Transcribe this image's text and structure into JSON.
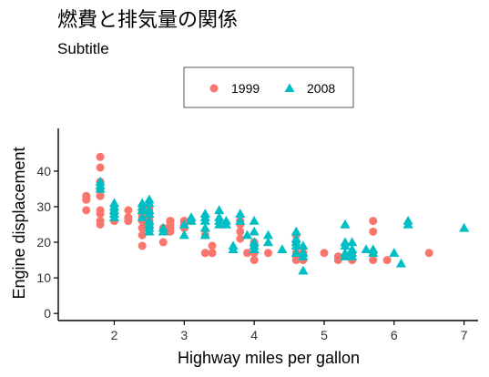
{
  "chart_data": {
    "type": "scatter",
    "title": "燃費と排気量の関係",
    "subtitle": "Subtitle",
    "xlabel": "Highway miles per gallon",
    "ylabel": "Engine displacement",
    "xlim": [
      1.2,
      7.2
    ],
    "ylim": [
      -2,
      52
    ],
    "xticks": [
      2,
      3,
      4,
      5,
      6,
      7
    ],
    "yticks": [
      0,
      10,
      20,
      30,
      40
    ],
    "grid": false,
    "legend": {
      "position": "top-center",
      "entries": [
        "1999",
        "2008"
      ]
    },
    "series": [
      {
        "name": "1999",
        "color": "#F8766D",
        "marker": "circle",
        "points": [
          [
            1.6,
            33
          ],
          [
            1.6,
            32
          ],
          [
            1.6,
            32
          ],
          [
            1.6,
            29
          ],
          [
            1.6,
            32
          ],
          [
            1.8,
            44
          ],
          [
            1.8,
            41
          ],
          [
            1.8,
            29
          ],
          [
            1.8,
            26
          ],
          [
            1.8,
            25
          ],
          [
            1.8,
            33
          ],
          [
            1.8,
            35
          ],
          [
            1.8,
            37
          ],
          [
            1.8,
            35
          ],
          [
            1.8,
            28
          ],
          [
            1.8,
            33
          ],
          [
            2.0,
            26
          ],
          [
            2.0,
            28
          ],
          [
            2.0,
            29
          ],
          [
            2.2,
            26
          ],
          [
            2.2,
            27
          ],
          [
            2.2,
            29
          ],
          [
            2.4,
            24
          ],
          [
            2.4,
            24
          ],
          [
            2.4,
            22
          ],
          [
            2.4,
            19
          ],
          [
            2.4,
            27
          ],
          [
            2.4,
            26
          ],
          [
            2.4,
            28
          ],
          [
            2.4,
            29
          ],
          [
            2.5,
            26
          ],
          [
            2.5,
            25
          ],
          [
            2.5,
            26
          ],
          [
            2.5,
            28
          ],
          [
            2.5,
            27
          ],
          [
            2.5,
            25
          ],
          [
            2.5,
            24
          ],
          [
            2.5,
            29
          ],
          [
            2.5,
            30
          ],
          [
            2.7,
            20
          ],
          [
            2.7,
            24
          ],
          [
            2.8,
            26
          ],
          [
            2.8,
            25
          ],
          [
            2.8,
            23
          ],
          [
            2.8,
            24
          ],
          [
            2.8,
            26
          ],
          [
            3.0,
            26
          ],
          [
            3.0,
            25
          ],
          [
            3.0,
            24
          ],
          [
            3.0,
            26
          ],
          [
            3.1,
            26
          ],
          [
            3.3,
            22
          ],
          [
            3.3,
            17
          ],
          [
            3.3,
            17
          ],
          [
            3.4,
            17
          ],
          [
            3.4,
            19
          ],
          [
            3.4,
            17
          ],
          [
            3.8,
            26
          ],
          [
            3.8,
            25
          ],
          [
            3.8,
            21
          ],
          [
            3.8,
            23
          ],
          [
            3.9,
            17
          ],
          [
            4.0,
            15
          ],
          [
            4.0,
            20
          ],
          [
            4.0,
            17
          ],
          [
            4.0,
            19
          ],
          [
            4.2,
            17
          ],
          [
            4.6,
            15
          ],
          [
            4.6,
            17
          ],
          [
            4.6,
            16
          ],
          [
            4.6,
            20
          ],
          [
            4.6,
            22
          ],
          [
            4.7,
            15
          ],
          [
            4.7,
            17
          ],
          [
            5.0,
            17
          ],
          [
            5.2,
            16
          ],
          [
            5.2,
            15
          ],
          [
            5.4,
            15
          ],
          [
            5.4,
            17
          ],
          [
            5.7,
            26
          ],
          [
            5.7,
            23
          ],
          [
            5.7,
            17
          ],
          [
            5.7,
            15
          ],
          [
            5.9,
            15
          ],
          [
            6.5,
            17
          ]
        ]
      },
      {
        "name": "2008",
        "color": "#00BFC4",
        "marker": "triangle",
        "points": [
          [
            1.8,
            37
          ],
          [
            1.8,
            36
          ],
          [
            1.8,
            35
          ],
          [
            2.0,
            31
          ],
          [
            2.0,
            29
          ],
          [
            2.0,
            28
          ],
          [
            2.0,
            30
          ],
          [
            2.0,
            27
          ],
          [
            2.4,
            31
          ],
          [
            2.4,
            29
          ],
          [
            2.4,
            27
          ],
          [
            2.4,
            30
          ],
          [
            2.5,
            32
          ],
          [
            2.5,
            31
          ],
          [
            2.5,
            29
          ],
          [
            2.5,
            28
          ],
          [
            2.5,
            26
          ],
          [
            2.5,
            25
          ],
          [
            2.5,
            24
          ],
          [
            2.5,
            23
          ],
          [
            2.7,
            24
          ],
          [
            2.7,
            23
          ],
          [
            3.0,
            22
          ],
          [
            3.0,
            25
          ],
          [
            3.1,
            27
          ],
          [
            3.1,
            26
          ],
          [
            3.3,
            28
          ],
          [
            3.3,
            27
          ],
          [
            3.3,
            26
          ],
          [
            3.3,
            24
          ],
          [
            3.3,
            22
          ],
          [
            3.5,
            29
          ],
          [
            3.5,
            27
          ],
          [
            3.5,
            26
          ],
          [
            3.5,
            25
          ],
          [
            3.6,
            26
          ],
          [
            3.6,
            25
          ],
          [
            3.7,
            19
          ],
          [
            3.7,
            18
          ],
          [
            3.8,
            28
          ],
          [
            3.8,
            26
          ],
          [
            3.9,
            22
          ],
          [
            4.0,
            26
          ],
          [
            4.0,
            23
          ],
          [
            4.0,
            20
          ],
          [
            4.0,
            19
          ],
          [
            4.0,
            18
          ],
          [
            4.2,
            22
          ],
          [
            4.2,
            20
          ],
          [
            4.4,
            18
          ],
          [
            4.6,
            23
          ],
          [
            4.6,
            21
          ],
          [
            4.6,
            20
          ],
          [
            4.6,
            19
          ],
          [
            4.6,
            17
          ],
          [
            4.7,
            19
          ],
          [
            4.7,
            17
          ],
          [
            4.7,
            16
          ],
          [
            4.7,
            12
          ],
          [
            5.3,
            25
          ],
          [
            5.3,
            20
          ],
          [
            5.3,
            19
          ],
          [
            5.3,
            17
          ],
          [
            5.3,
            16
          ],
          [
            5.4,
            20
          ],
          [
            5.4,
            18
          ],
          [
            5.4,
            17
          ],
          [
            5.4,
            16
          ],
          [
            5.6,
            18
          ],
          [
            5.7,
            18
          ],
          [
            5.7,
            17
          ],
          [
            6.0,
            17
          ],
          [
            6.1,
            14
          ],
          [
            6.2,
            26
          ],
          [
            6.2,
            25
          ],
          [
            7.0,
            24
          ]
        ]
      }
    ]
  }
}
